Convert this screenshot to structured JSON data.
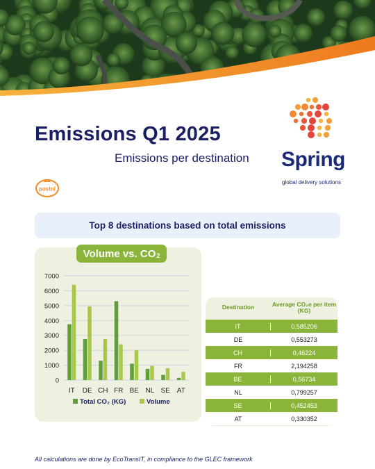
{
  "header": {
    "title": "Emissions Q1 2025",
    "subtitle": "Emissions per destination"
  },
  "brand": {
    "name": "Spring",
    "tagline": "global delivery solutions",
    "partner_logo_text": "postnl",
    "brand_color": "#1a2a78",
    "accent_orange": "#f08a24"
  },
  "banner": {
    "text": "Top 8 destinations based on total emissions"
  },
  "chart_data": {
    "type": "bar",
    "title": "Volume vs. CO",
    "title_sub": "2",
    "categories": [
      "IT",
      "DE",
      "CH",
      "FR",
      "BE",
      "NL",
      "SE",
      "AT"
    ],
    "series": [
      {
        "name": "Total CO₂ (KG)",
        "color": "#5f9e3a",
        "values": [
          3750,
          2750,
          1300,
          5300,
          1100,
          750,
          350,
          150
        ]
      },
      {
        "name": "Volume",
        "color": "#a9c84a",
        "values": [
          6400,
          4950,
          2750,
          2400,
          2000,
          950,
          800,
          550
        ]
      }
    ],
    "ylim": [
      0,
      7000
    ],
    "yticks": [
      "0",
      "1000",
      "2000",
      "3000",
      "4000",
      "5000",
      "6000",
      "7000"
    ],
    "grid": true,
    "legend": "bottom"
  },
  "table": {
    "headers": [
      "Destination",
      "Average CO₂e per item (KG)"
    ],
    "rows": [
      {
        "destination": "IT",
        "value": "0,585206"
      },
      {
        "destination": "DE",
        "value": "0,553273"
      },
      {
        "destination": "CH",
        "value": "0,46224"
      },
      {
        "destination": "FR",
        "value": "2,194258"
      },
      {
        "destination": "BE",
        "value": "0,56734"
      },
      {
        "destination": "NL",
        "value": "0,799257"
      },
      {
        "destination": "SE",
        "value": "0,452453"
      },
      {
        "destination": "AT",
        "value": "0,330352"
      }
    ]
  },
  "footnote": "All calculations are done by EcoTransIT, in compliance to the GLEC framework"
}
